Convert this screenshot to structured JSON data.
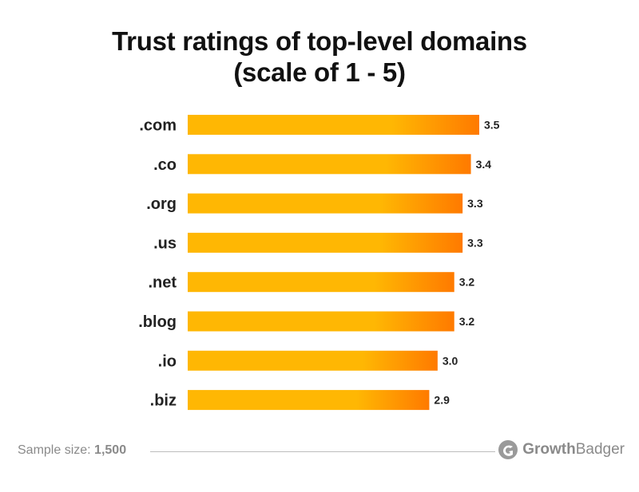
{
  "chart_data": {
    "type": "bar",
    "orientation": "horizontal",
    "title_line1": "Trust ratings of top-level domains",
    "title_line2": "(scale of 1 - 5)",
    "categories": [
      ".com",
      ".co",
      ".org",
      ".us",
      ".net",
      ".blog",
      ".io",
      ".biz"
    ],
    "values": [
      3.5,
      3.4,
      3.3,
      3.3,
      3.2,
      3.2,
      3.0,
      2.9
    ],
    "value_labels": [
      "3.5",
      "3.4",
      "3.3",
      "3.3",
      "3.2",
      "3.2",
      "3.0",
      "2.9"
    ],
    "xlabel": "",
    "ylabel": "",
    "grid": false,
    "legend": "none",
    "colors": {
      "bar_start": "#FFB703",
      "bar_end": "#FF7A00"
    }
  },
  "footer": {
    "sample_label": "Sample size:",
    "sample_value": "1,500"
  },
  "brand": {
    "name_part1": "Growth",
    "name_part2": "Badger",
    "icon": "growthbadger-logo-icon"
  }
}
